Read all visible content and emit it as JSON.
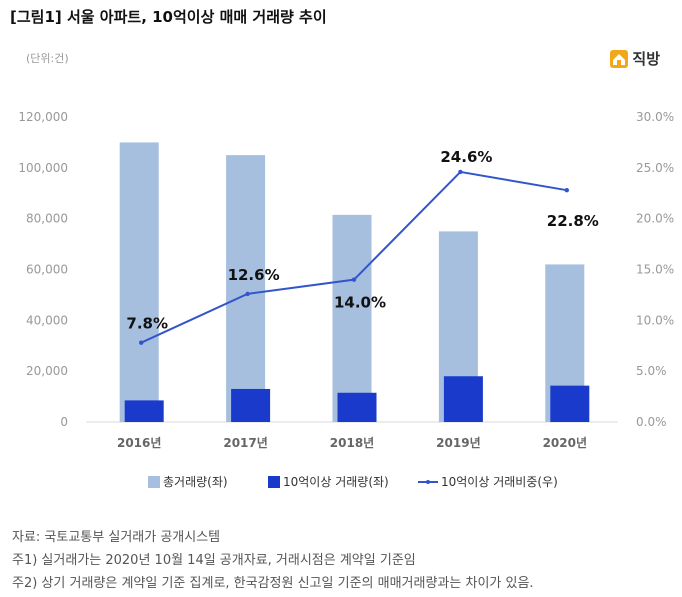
{
  "header": {
    "title": "[그림1] 서울 아파트, 10억이상 매매 거래량 추이",
    "unit": "(단위:건)",
    "logo_text": "직방"
  },
  "notes": {
    "source": "자료: 국토교통부 실거래가 공개시스템",
    "note1": "주1) 실거래가는 2020년 10월 14일 공개자료, 거래시점은 계약일 기준임",
    "note2": "주2) 상기 거래량은 계약일 기준 집계로, 한국감정원 신고일 기준의 매매거래량과는 차이가 있음."
  },
  "colors": {
    "total_bar": "#a6bfdf",
    "over_bar": "#1a3acc",
    "line": "#3355cc"
  },
  "chart_data": {
    "type": "bar+line",
    "categories": [
      "2016년",
      "2017년",
      "2018년",
      "2019년",
      "2020년"
    ],
    "series": [
      {
        "name": "총거래량(좌)",
        "type": "bar",
        "axis": "left",
        "values": [
          110000,
          105000,
          81500,
          75000,
          62000
        ]
      },
      {
        "name": "10억이상 거래량(좌)",
        "type": "bar",
        "axis": "left",
        "values": [
          8500,
          13000,
          11500,
          18000,
          14300
        ]
      },
      {
        "name": "10억이상 거래비중(우)",
        "type": "line",
        "axis": "right",
        "values": [
          7.8,
          12.6,
          14.0,
          24.6,
          22.8
        ]
      }
    ],
    "data_labels": [
      "7.8%",
      "12.6%",
      "14.0%",
      "24.6%",
      "22.8%"
    ],
    "y_left": {
      "min": 0,
      "max": 120000,
      "ticks": [
        0,
        20000,
        40000,
        60000,
        80000,
        100000,
        120000
      ],
      "tick_labels": [
        "0",
        "20,000",
        "40,000",
        "60,000",
        "80,000",
        "100,000",
        "120,000"
      ]
    },
    "y_right": {
      "min": 0,
      "max": 30,
      "ticks": [
        0,
        5,
        10,
        15,
        20,
        25,
        30
      ],
      "tick_labels": [
        "0.0%",
        "5.0%",
        "10.0%",
        "15.0%",
        "20.0%",
        "25.0%",
        "30.0%"
      ]
    },
    "grid": false,
    "legend_position": "bottom"
  }
}
